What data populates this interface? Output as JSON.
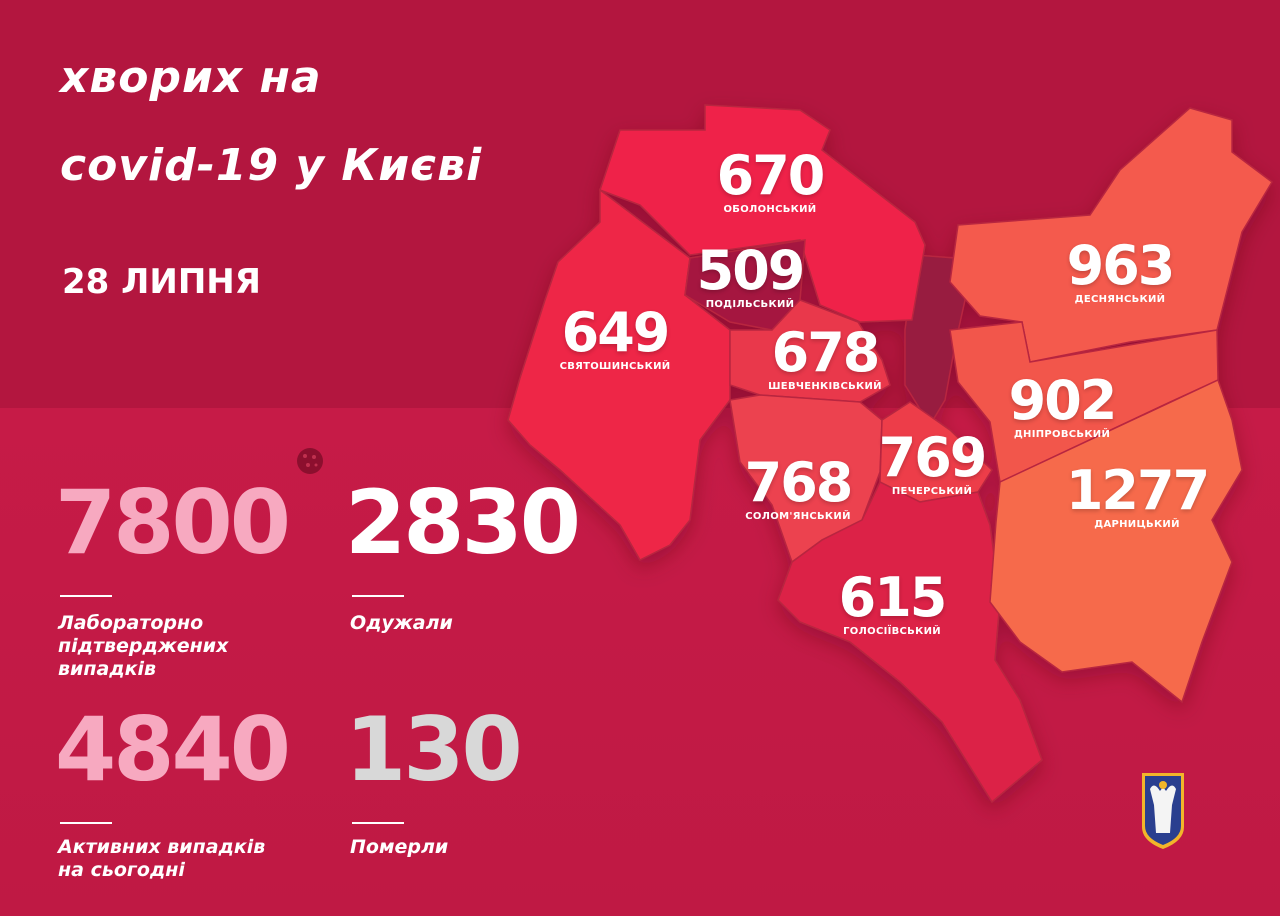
{
  "header": {
    "title_line1": "хворих на",
    "title_line2": "covid-19 у Києві",
    "date": "28 ЛИПНЯ"
  },
  "stats": [
    {
      "value": "7800",
      "label_lines": [
        "Лабораторно",
        "підтверджених",
        "випадків"
      ],
      "color": "#f7a9c0"
    },
    {
      "value": "2830",
      "label_lines": [
        "Одужали"
      ],
      "color": "#ffffff"
    },
    {
      "value": "4840",
      "label_lines": [
        "Активних випадків",
        "на сьогодні"
      ],
      "color": "#f7a9c0"
    },
    {
      "value": "130",
      "label_lines": [
        "Померли"
      ],
      "color": "#d8d8d8"
    }
  ],
  "districts": [
    {
      "name": "ОБОЛОНСЬКИЙ",
      "cases": "670",
      "color": "#ef2448"
    },
    {
      "name": "ПОДІЛЬСЬКИЙ",
      "cases": "509",
      "color": "#a5173f"
    },
    {
      "name": "СВЯТОШИНСЬКИЙ",
      "cases": "649",
      "color": "#ee2647"
    },
    {
      "name": "ШЕВЧЕНКІВСЬКИЙ",
      "cases": "678",
      "color": "#e9394b"
    },
    {
      "name": "СОЛОМ'ЯНСЬКИЙ",
      "cases": "768",
      "color": "#ec424f"
    },
    {
      "name": "ПЕЧЕРСЬКИЙ",
      "cases": "769",
      "color": "#ed3d49"
    },
    {
      "name": "ГОЛОСІЇВСЬКИЙ",
      "cases": "615",
      "color": "#dc2047"
    },
    {
      "name": "ДЕСНЯНСЬКИЙ",
      "cases": "963",
      "color": "#f45a4d"
    },
    {
      "name": "ДНІПРОВСЬКИЙ",
      "cases": "902",
      "color": "#f2574c"
    },
    {
      "name": "ДАРНИЦЬКИЙ",
      "cases": "1277",
      "color": "#f66a4c"
    }
  ],
  "colors": {
    "background": "#b3163f",
    "river": "#981a3f"
  },
  "icons": {
    "virus": "virus-icon",
    "emblem": "kyiv-coat-of-arms"
  }
}
